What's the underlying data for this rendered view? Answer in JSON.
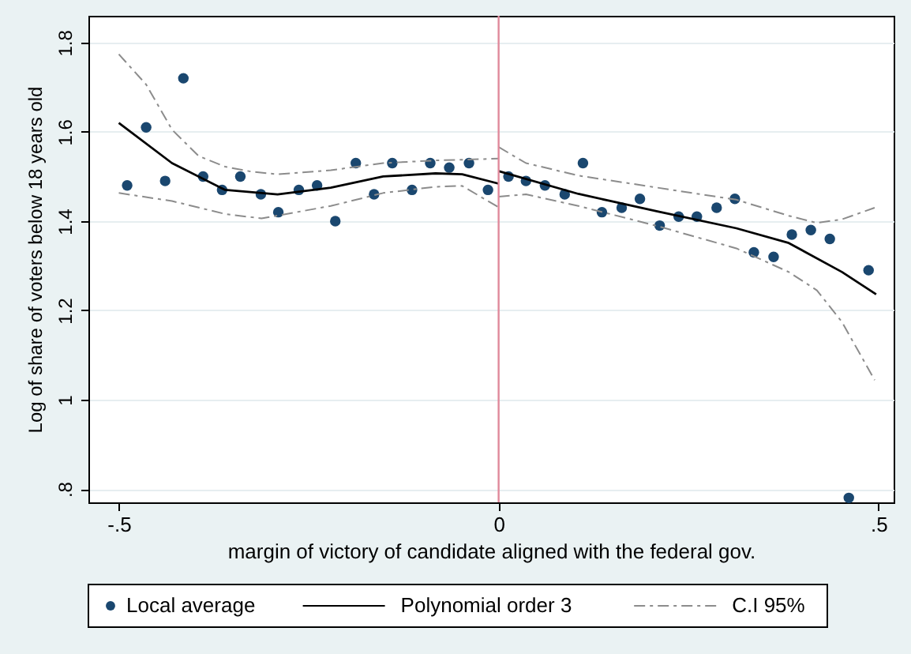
{
  "chart_data": {
    "type": "scatter",
    "xlabel": "margin of victory of candidate aligned with the federal gov.",
    "ylabel": "Log of share of voters below 18 years old",
    "xlim": [
      -0.54,
      0.52
    ],
    "ylim": [
      0.77,
      1.86
    ],
    "xticks": [
      {
        "value": -0.5,
        "label": "-.5"
      },
      0,
      {
        "value": 0.5,
        "label": ".5"
      }
    ],
    "yticks": [
      {
        "value": 0.8,
        "label": ".8"
      },
      1,
      1.2,
      1.4,
      1.6,
      1.8
    ],
    "grid": "y",
    "legend": "bottom",
    "ref_lines": [
      {
        "axis": "x",
        "value": 0,
        "color": "#e0899b"
      }
    ],
    "series": [
      {
        "name": "Local average",
        "marker": "circle",
        "color": "#1a476f",
        "x": [
          -0.489,
          -0.464,
          -0.439,
          -0.415,
          -0.389,
          -0.364,
          -0.34,
          -0.313,
          -0.29,
          -0.263,
          -0.239,
          -0.215,
          -0.188,
          -0.164,
          -0.14,
          -0.114,
          -0.09,
          -0.065,
          -0.039,
          -0.014,
          0.013,
          0.036,
          0.061,
          0.087,
          0.111,
          0.136,
          0.162,
          0.186,
          0.212,
          0.237,
          0.261,
          0.287,
          0.311,
          0.336,
          0.362,
          0.386,
          0.411,
          0.436,
          0.461,
          0.487
        ],
        "values": [
          1.48,
          1.61,
          1.49,
          1.72,
          1.5,
          1.47,
          1.5,
          1.46,
          1.42,
          1.47,
          1.48,
          1.4,
          1.53,
          1.46,
          1.53,
          1.47,
          1.53,
          1.52,
          1.53,
          1.47,
          1.5,
          1.49,
          1.48,
          1.46,
          1.53,
          1.42,
          1.43,
          1.45,
          1.39,
          1.41,
          1.41,
          1.43,
          1.45,
          1.33,
          1.32,
          1.37,
          1.38,
          1.36,
          0.78,
          1.29
        ]
      },
      {
        "name": "Polynomial order 3",
        "type": "line",
        "line_style": "solid",
        "color": "#000000",
        "x": [
          -0.5,
          -0.43,
          -0.36,
          -0.291,
          -0.221,
          -0.152,
          -0.083,
          -0.048,
          0
        ],
        "values": [
          1.62,
          1.53,
          1.47,
          1.46,
          1.475,
          1.5,
          1.507,
          1.505,
          1.484
        ]
      },
      {
        "type": "line",
        "line_style": "solid",
        "color": "#000000",
        "x": [
          0,
          0.105,
          0.209,
          0.313,
          0.382,
          0.452,
          0.497
        ],
        "values": [
          1.512,
          1.461,
          1.422,
          1.384,
          1.351,
          1.286,
          1.236
        ]
      },
      {
        "name": "C.I 95%",
        "type": "line",
        "line_style": "dashed",
        "color": "#8c8c8c",
        "x": [
          -0.5,
          -0.464,
          -0.43,
          -0.395,
          -0.36,
          -0.326,
          -0.291,
          -0.221,
          -0.152,
          -0.083,
          0
        ],
        "values": [
          1.774,
          1.706,
          1.605,
          1.546,
          1.522,
          1.511,
          1.505,
          1.514,
          1.53,
          1.536,
          1.54
        ]
      },
      {
        "type": "line",
        "line_style": "dashed",
        "color": "#8c8c8c",
        "x": [
          -0.5,
          -0.43,
          -0.36,
          -0.312,
          -0.221,
          -0.152,
          -0.083,
          -0.048,
          0
        ],
        "values": [
          1.463,
          1.445,
          1.416,
          1.406,
          1.434,
          1.463,
          1.477,
          1.479,
          1.431
        ]
      },
      {
        "type": "line",
        "line_style": "dashed",
        "color": "#8c8c8c",
        "x": [
          0,
          0.036,
          0.105,
          0.209,
          0.313,
          0.382,
          0.419,
          0.452,
          0.495
        ],
        "values": [
          1.566,
          1.53,
          1.502,
          1.475,
          1.448,
          1.412,
          1.396,
          1.404,
          1.43
        ]
      },
      {
        "type": "line",
        "line_style": "dashed",
        "color": "#8c8c8c",
        "x": [
          0,
          0.036,
          0.105,
          0.209,
          0.313,
          0.382,
          0.419,
          0.452,
          0.495
        ],
        "values": [
          1.455,
          1.46,
          1.434,
          1.389,
          1.339,
          1.286,
          1.245,
          1.174,
          1.044
        ]
      }
    ]
  }
}
